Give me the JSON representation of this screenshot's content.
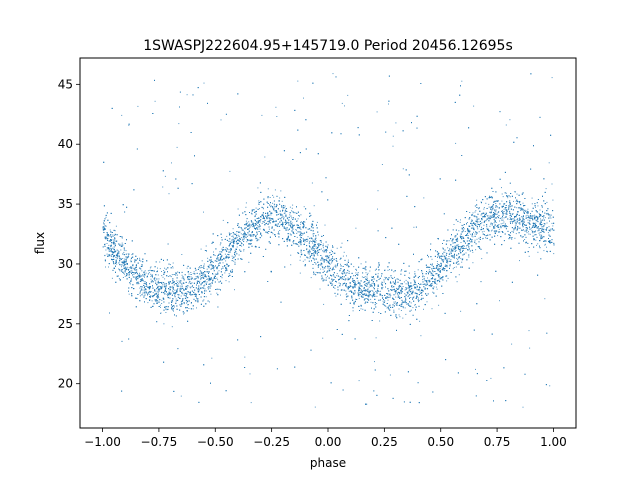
{
  "chart_data": {
    "type": "scatter",
    "title": "1SWASPJ222604.95+145719.0 Period 20456.12695s",
    "xlabel": "phase",
    "ylabel": "flux",
    "xlim": [
      -1.1,
      1.1
    ],
    "ylim": [
      16.3,
      47.2
    ],
    "x_ticks": [
      -1.0,
      -0.75,
      -0.5,
      -0.25,
      0.0,
      0.25,
      0.5,
      0.75,
      1.0
    ],
    "x_tick_labels": [
      "−1.00",
      "−0.75",
      "−0.50",
      "−0.25",
      "0.00",
      "0.25",
      "0.50",
      "0.75",
      "1.00"
    ],
    "y_ticks": [
      20,
      25,
      30,
      35,
      40,
      45
    ],
    "y_tick_labels": [
      "20",
      "25",
      "30",
      "35",
      "40",
      "45"
    ],
    "grid": false,
    "legend": "none",
    "point_color": "#1f77b4",
    "series": [
      {
        "phase": [
          -1.0,
          -0.9,
          -0.8,
          -0.75,
          -0.7,
          -0.6,
          -0.5,
          -0.4,
          -0.3,
          -0.25,
          -0.2,
          -0.1,
          0.0,
          0.1,
          0.2,
          0.25,
          0.3,
          0.4,
          0.5,
          0.6,
          0.7,
          0.75,
          0.8,
          0.9,
          1.0
        ],
        "flux_center": [
          32.3,
          30.0,
          28.3,
          28.0,
          27.8,
          27.9,
          29.5,
          32.0,
          33.6,
          34.0,
          33.8,
          32.2,
          30.0,
          28.2,
          27.9,
          27.8,
          27.8,
          28.0,
          29.8,
          32.0,
          33.8,
          34.1,
          34.0,
          33.4,
          32.6
        ],
        "band_halfwidth": 1.4
      }
    ]
  }
}
